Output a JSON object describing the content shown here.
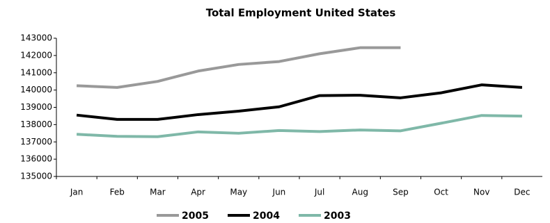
{
  "chart_data": {
    "type": "line",
    "title": "Total Employment United States",
    "categories": [
      "Jan",
      "Feb",
      "Mar",
      "Apr",
      "May",
      "Jun",
      "Jul",
      "Aug",
      "Sep",
      "Oct",
      "Nov",
      "Dec"
    ],
    "series": [
      {
        "name": "2005",
        "color": "#999999",
        "values": [
          140250,
          140150,
          140500,
          141100,
          141480,
          141650,
          142100,
          142450,
          142450,
          null,
          null,
          null
        ]
      },
      {
        "name": "2004",
        "color": "#000000",
        "values": [
          138550,
          138300,
          138300,
          138580,
          138780,
          139030,
          139680,
          139700,
          139550,
          139840,
          140300,
          140150
        ]
      },
      {
        "name": "2003",
        "color": "#7fb8a8",
        "values": [
          137440,
          137320,
          137300,
          137580,
          137500,
          137660,
          137600,
          137690,
          137640,
          138080,
          138530,
          138490
        ]
      }
    ],
    "ylim": [
      135000,
      143000
    ],
    "yticks": [
      135000,
      136000,
      137000,
      138000,
      139000,
      140000,
      141000,
      142000,
      143000
    ],
    "grid": false,
    "legend": "bottom"
  }
}
